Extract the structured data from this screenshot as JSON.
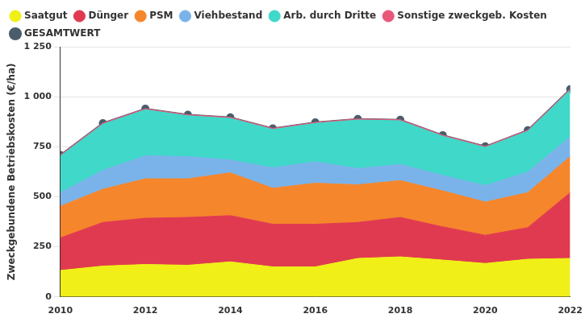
{
  "chart_data": {
    "type": "area",
    "stacked": true,
    "legend": "top",
    "grid": true,
    "y_label": "Zweckgebundene Betriebskosten (€/ha)",
    "x": [
      2010,
      2011,
      2012,
      2013,
      2014,
      2015,
      2016,
      2017,
      2018,
      2019,
      2020,
      2021,
      2022
    ],
    "xlim": [
      2010,
      2022
    ],
    "xticks": [
      2010,
      2012,
      2014,
      2016,
      2018,
      2020,
      2022
    ],
    "ylim": [
      0,
      1250
    ],
    "yticks": [
      0,
      250,
      500,
      750,
      {
        "value": 1000,
        "label": "1 000"
      },
      {
        "value": 1250,
        "label": "1 250"
      }
    ],
    "series": [
      {
        "name": "Saatgut",
        "color": "#f0ef17",
        "type": "area",
        "values": [
          132,
          154,
          162,
          158,
          175,
          150,
          150,
          192,
          200,
          184,
          167,
          188,
          192
        ]
      },
      {
        "name": "Dünger",
        "color": "#e03a50",
        "type": "area",
        "values": [
          163,
          218,
          231,
          239,
          231,
          213,
          213,
          180,
          197,
          166,
          141,
          158,
          329
        ]
      },
      {
        "name": "PSM",
        "color": "#f5862b",
        "type": "area",
        "values": [
          158,
          166,
          197,
          193,
          214,
          180,
          205,
          188,
          184,
          180,
          166,
          175,
          180
        ]
      },
      {
        "name": "Viehbestand",
        "color": "#7ab3ea",
        "type": "area",
        "values": [
          68,
          94,
          115,
          111,
          64,
          102,
          107,
          81,
          81,
          77,
          82,
          103,
          98
        ]
      },
      {
        "name": "Arb. durch Dritte",
        "color": "#3fd8c9",
        "type": "area",
        "values": [
          183,
          231,
          230,
          204,
          208,
          192,
          192,
          243,
          218,
          196,
          191,
          204,
          234
        ]
      },
      {
        "name": "Sonstige zweckgeb. Kosten",
        "color": "#e8577a",
        "type": "area",
        "values": [
          5,
          5,
          5,
          5,
          5,
          5,
          5,
          5,
          5,
          5,
          5,
          5,
          5
        ]
      },
      {
        "name": "GESAMTWERT",
        "color": "#4a5d6b",
        "type": "line",
        "marker": "circle",
        "values": [
          709,
          868,
          940,
          910,
          897,
          842,
          872,
          889,
          885,
          808,
          752,
          833,
          1038
        ]
      }
    ]
  }
}
